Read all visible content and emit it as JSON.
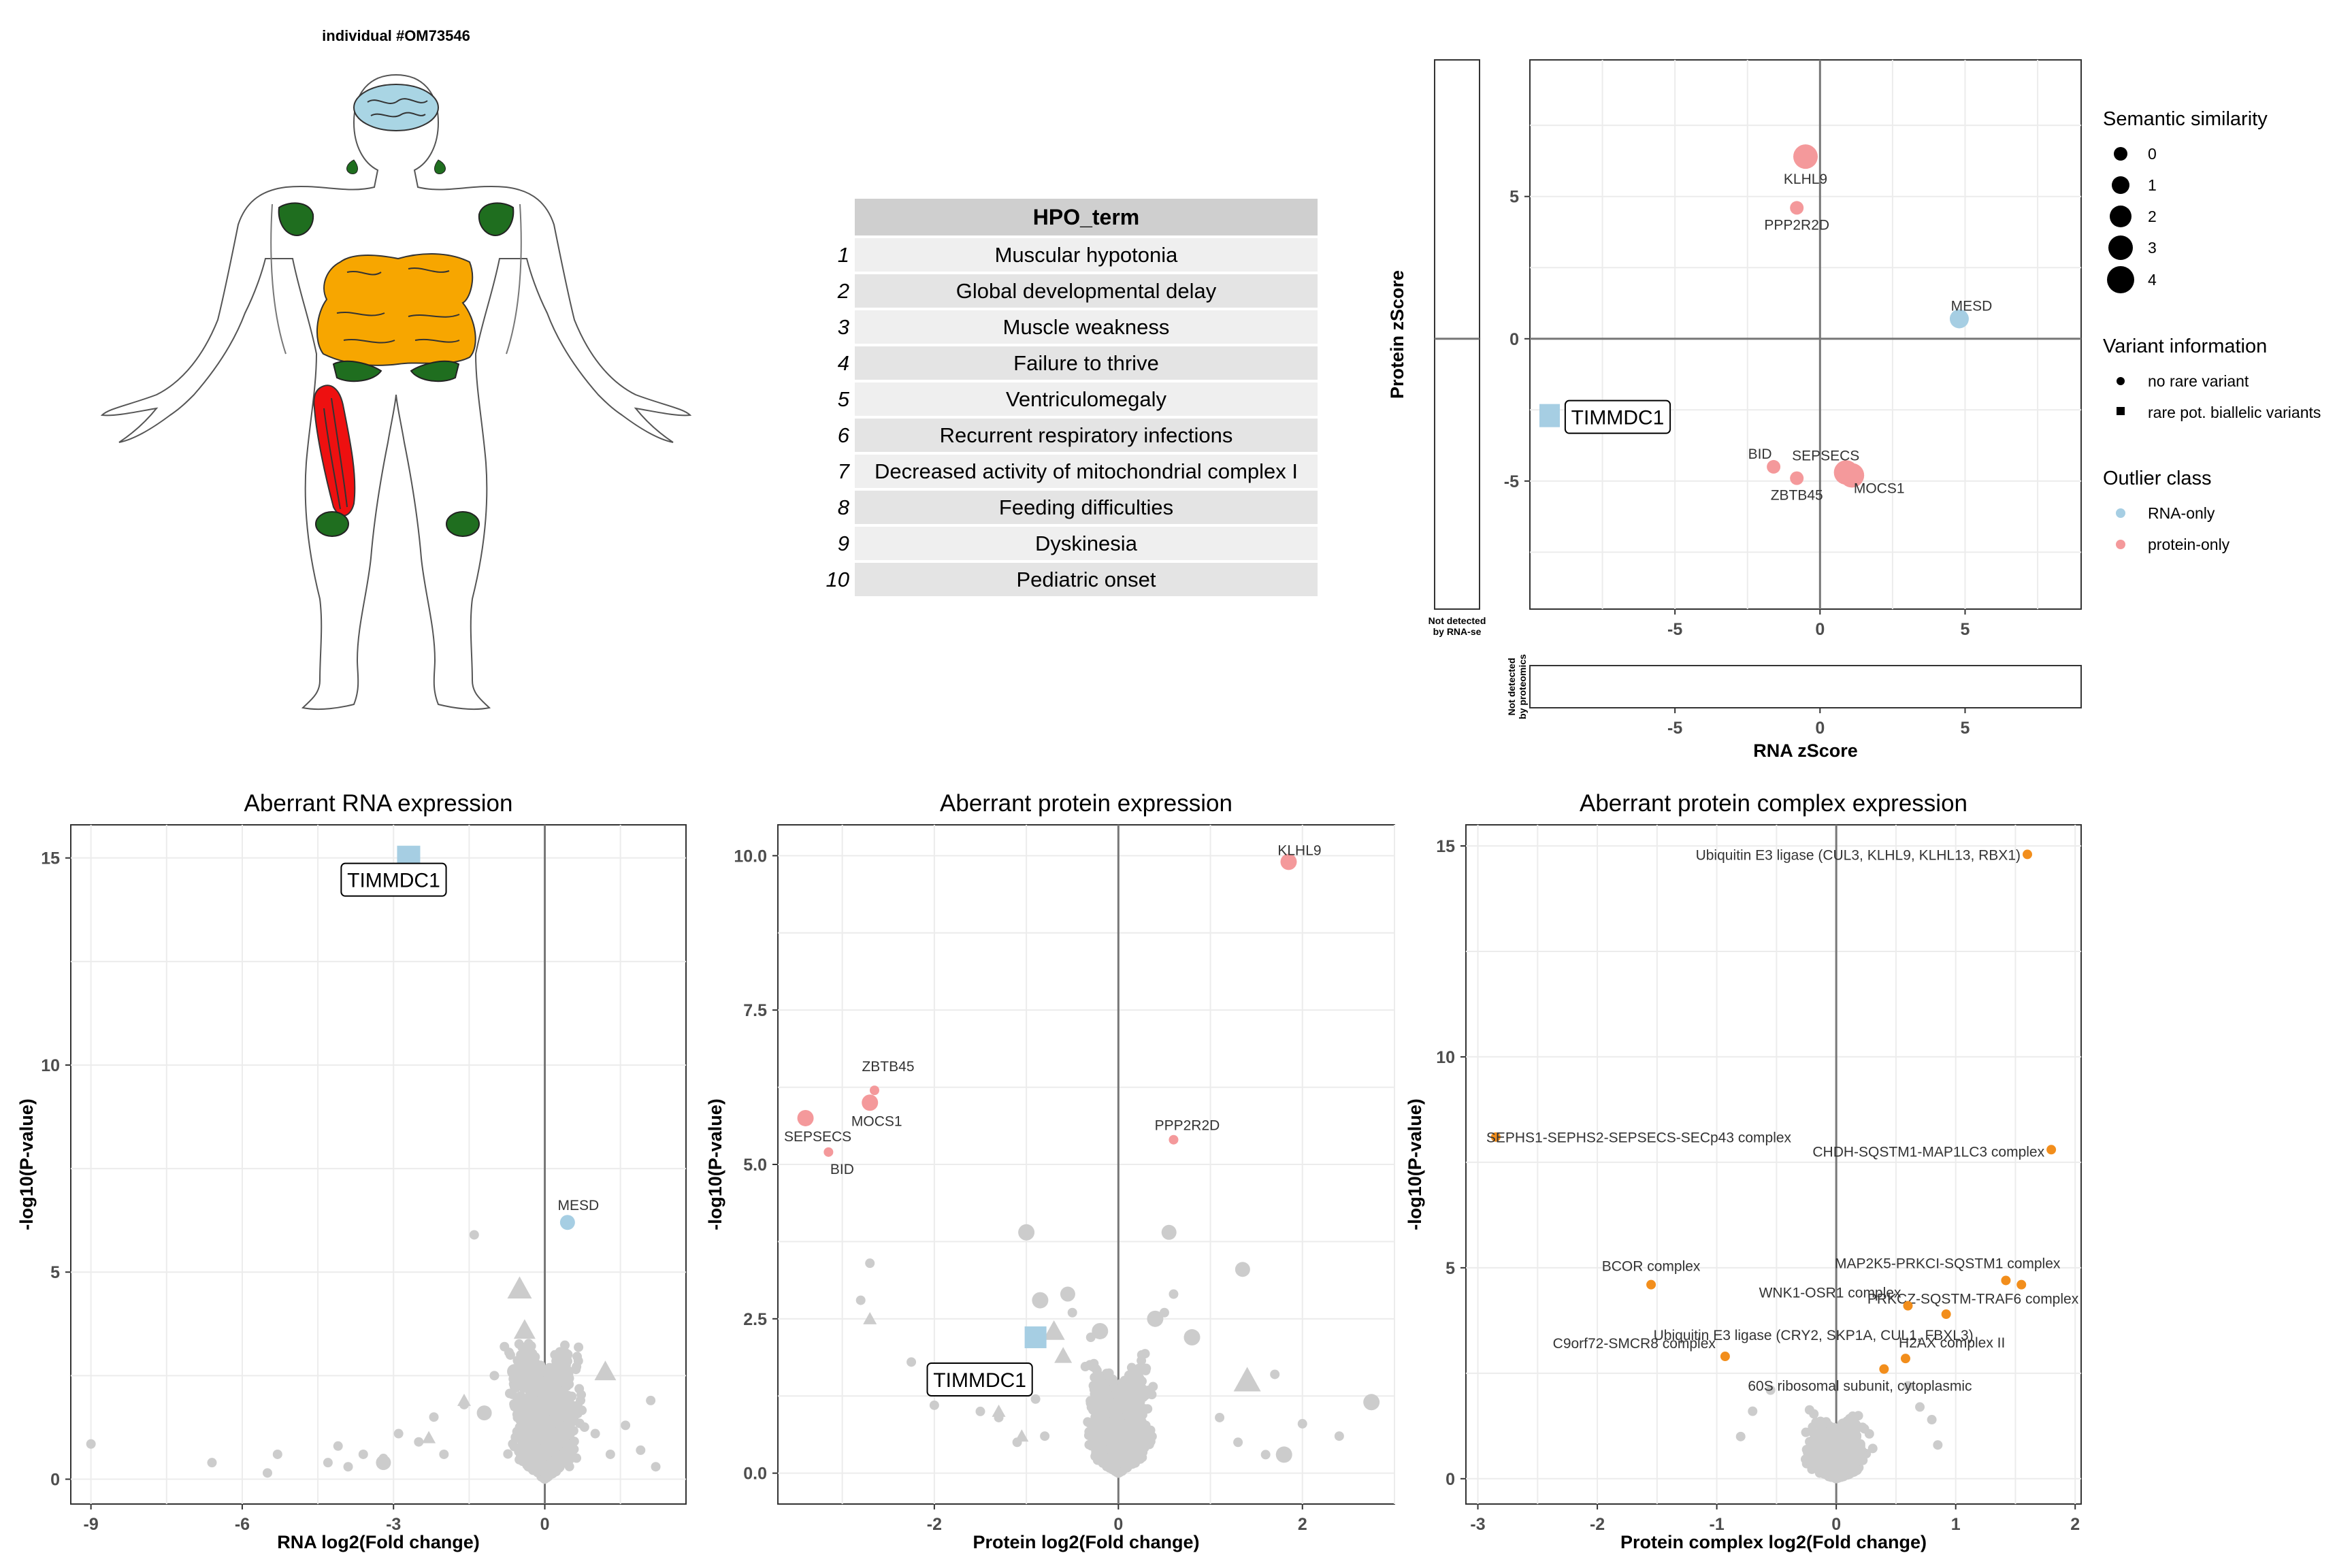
{
  "body_panel": {
    "title": "individual #OM73546"
  },
  "hpo_table": {
    "header": "HPO_term",
    "rows": [
      {
        "idx": "1",
        "term": "Muscular hypotonia"
      },
      {
        "idx": "2",
        "term": "Global developmental delay"
      },
      {
        "idx": "3",
        "term": "Muscle weakness"
      },
      {
        "idx": "4",
        "term": "Failure to thrive"
      },
      {
        "idx": "5",
        "term": "Ventriculomegaly"
      },
      {
        "idx": "6",
        "term": "Recurrent respiratory infections"
      },
      {
        "idx": "7",
        "term": "Decreased activity of mitochondrial complex I"
      },
      {
        "idx": "8",
        "term": "Feeding difficulties"
      },
      {
        "idx": "9",
        "term": "Dyskinesia"
      },
      {
        "idx": "10",
        "term": "Pediatric onset"
      }
    ]
  },
  "colors": {
    "rna_only": "#a6cee3",
    "protein_only": "#f4999b",
    "complex": "#f28e1c",
    "background_points": "#cccccc"
  },
  "legend": {
    "semantic_title": "Semantic similarity",
    "semantic_levels": [
      "0",
      "1",
      "2",
      "3",
      "4"
    ],
    "variant_title": "Variant information",
    "variant_items": [
      "no rare variant",
      "rare pot. biallelic variants"
    ],
    "outlier_title": "Outlier class",
    "outlier_items": [
      "RNA-only",
      "protein-only"
    ]
  },
  "chart_data": [
    {
      "type": "scatter",
      "id": "zscore",
      "xlabel": "RNA zScore",
      "ylabel": "Protein zScore",
      "xlim": [
        -10,
        9
      ],
      "ylim": [
        -9.5,
        9.8
      ],
      "xticks": [
        -5,
        0,
        5
      ],
      "yticks": [
        -5,
        0,
        5
      ],
      "side_label_rna": [
        "Not detected",
        "by RNA-se"
      ],
      "side_label_prot": [
        "Not detected",
        "by proteomics"
      ],
      "points": [
        {
          "label": "KLHL9",
          "x": -0.5,
          "y": 6.4,
          "cls": "protein",
          "size": 2
        },
        {
          "label": "PPP2R2D",
          "x": -0.8,
          "y": 4.6,
          "cls": "protein",
          "size": 0
        },
        {
          "label": "MESD",
          "x": 4.8,
          "y": 0.7,
          "cls": "rna",
          "size": 1
        },
        {
          "label": "BID",
          "x": -1.6,
          "y": -4.5,
          "cls": "protein",
          "size": 0
        },
        {
          "label": "ZBTB45",
          "x": -0.8,
          "y": -4.9,
          "cls": "protein",
          "size": 0
        },
        {
          "label": "SEPSECS",
          "x": 0.9,
          "y": -4.7,
          "cls": "protein",
          "size": 2
        },
        {
          "label": "MOCS1",
          "x": 1.1,
          "y": -4.8,
          "cls": "protein",
          "size": 2
        }
      ],
      "callout": {
        "label": "TIMMDC1",
        "y": -2.7,
        "cls": "rna"
      }
    },
    {
      "type": "scatter",
      "id": "rna_volcano",
      "title": "Aberrant RNA expression",
      "xlabel": "RNA log2(Fold change)",
      "ylabel": "-log10(P-value)",
      "xlim": [
        -9.4,
        2.8
      ],
      "ylim": [
        -0.6,
        15.8
      ],
      "xticks": [
        -9,
        -6,
        -3,
        0
      ],
      "yticks": [
        0,
        5,
        10,
        15
      ],
      "highlight": [
        {
          "label": "MESD",
          "x": 0.45,
          "y": 6.2,
          "cls": "rna",
          "shape": "circle"
        },
        {
          "label": "TIMMDC1",
          "x": -2.7,
          "y": 15.0,
          "cls": "rna",
          "shape": "square",
          "boxed": true
        }
      ]
    },
    {
      "type": "scatter",
      "id": "protein_volcano",
      "title": "Aberrant protein expression",
      "xlabel": "Protein log2(Fold change)",
      "ylabel": "-log10(P-value)",
      "xlim": [
        -3.7,
        3.0
      ],
      "ylim": [
        -0.5,
        10.5
      ],
      "xticks": [
        -2,
        0,
        2
      ],
      "yticks": [
        0.0,
        2.5,
        5.0,
        7.5,
        10.0
      ],
      "ytick_labels": [
        "0.0",
        "2.5",
        "5.0",
        "7.5",
        "10.0"
      ],
      "highlight": [
        {
          "label": "KLHL9",
          "x": 1.85,
          "y": 9.9,
          "cls": "protein",
          "shape": "circle"
        },
        {
          "label": "ZBTB45",
          "x": -2.65,
          "y": 6.2,
          "cls": "protein",
          "shape": "circle"
        },
        {
          "label": "MOCS1",
          "x": -2.7,
          "y": 6.0,
          "cls": "protein",
          "shape": "circle"
        },
        {
          "label": "SEPSECS",
          "x": -3.4,
          "y": 5.75,
          "cls": "protein",
          "shape": "circle"
        },
        {
          "label": "BID",
          "x": -3.15,
          "y": 5.2,
          "cls": "protein",
          "shape": "circle"
        },
        {
          "label": "PPP2R2D",
          "x": 0.6,
          "y": 5.4,
          "cls": "protein",
          "shape": "circle"
        },
        {
          "label": "TIMMDC1",
          "x": -0.9,
          "y": 2.2,
          "cls": "rna",
          "shape": "square",
          "boxed": true
        }
      ]
    },
    {
      "type": "scatter",
      "id": "complex_volcano",
      "title": "Aberrant protein complex expression",
      "xlabel": "Protein complex log2(Fold change)",
      "ylabel": "-log10(P-value)",
      "xlim": [
        -3.1,
        2.05
      ],
      "ylim": [
        -0.6,
        15.5
      ],
      "xticks": [
        -3,
        -2,
        -1,
        0,
        1,
        2
      ],
      "yticks": [
        0,
        5,
        10,
        15
      ],
      "highlight": [
        {
          "label": "Ubiquitin E3 ligase (CUL3, KLHL9, KLHL13, RBX1)",
          "x": 1.6,
          "y": 14.8
        },
        {
          "label": "SEPHS1-SEPHS2-SEPSECS-SECp43 complex",
          "x": -2.85,
          "y": 8.1
        },
        {
          "label": "CHDH-SQSTM1-MAP1LC3 complex",
          "x": 1.8,
          "y": 7.8
        },
        {
          "label": "BCOR complex",
          "x": -1.55,
          "y": 4.6
        },
        {
          "label": "MAP2K5-PRKCI-SQSTM1 complex",
          "x": 1.42,
          "y": 4.7
        },
        {
          "label": "PRKCZ-SQSTM-TRAF6 complex",
          "x": 1.55,
          "y": 4.6
        },
        {
          "label": "WNK1-OSR1 complex",
          "x": 0.6,
          "y": 4.1
        },
        {
          "label": "Ubiquitin E3 ligase (CRY2, SKP1A, CUL1, FBXL3)",
          "x": 0.92,
          "y": 3.9
        },
        {
          "label": "C9orf72-SMCR8 complex",
          "x": -0.93,
          "y": 2.9
        },
        {
          "label": "H2AX complex II",
          "x": 0.58,
          "y": 2.85
        },
        {
          "label": "60S ribosomal subunit, cytoplasmic",
          "x": 0.4,
          "y": 2.6
        }
      ]
    }
  ]
}
